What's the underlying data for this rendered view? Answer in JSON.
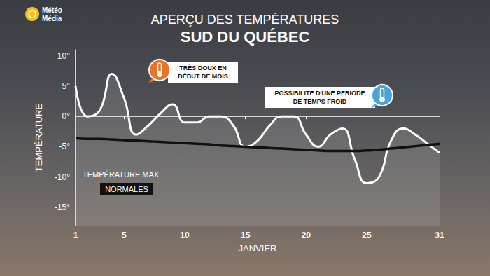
{
  "chart_data": {
    "type": "line",
    "title": "APERÇU DES TEMPÉRATURES",
    "subtitle": "SUD DU QUÉBEC",
    "logo": "Météo\nMédia",
    "x_label": "JANVIER",
    "y_label": "TEMPÉRATURE",
    "x": [
      1,
      2,
      3,
      4,
      5,
      6,
      7,
      8,
      9,
      10,
      11,
      12,
      13,
      14,
      15,
      16,
      17,
      18,
      19,
      20,
      21,
      22,
      23,
      24,
      25,
      26,
      27,
      28,
      29,
      30,
      31
    ],
    "series": [
      {
        "name": "TEMPÉRATURE MAX.",
        "color": "#ffffff",
        "values": [
          5,
          0,
          1,
          7,
          3,
          -3,
          -1.5,
          0.5,
          2,
          -1,
          -1,
          0,
          0,
          -1.5,
          -5,
          -4,
          -1.5,
          0,
          0,
          -3,
          -5,
          -3,
          -2,
          -7,
          -11,
          -10,
          -4,
          -2,
          -3,
          -4.5,
          -6
        ]
      },
      {
        "name": "NORMALES",
        "color": "#111111",
        "values": [
          -3.6,
          -3.7,
          -3.7,
          -3.8,
          -3.9,
          -4.0,
          -4.1,
          -4.2,
          -4.3,
          -4.4,
          -4.5,
          -4.6,
          -4.8,
          -4.9,
          -5.0,
          -5.1,
          -5.2,
          -5.3,
          -5.4,
          -5.5,
          -5.6,
          -5.7,
          -5.7,
          -5.7,
          -5.6,
          -5.5,
          -5.3,
          -5.1,
          -4.9,
          -4.7,
          -4.5
        ]
      }
    ],
    "xlim": [
      1,
      31
    ],
    "xticks": [
      1,
      5,
      10,
      15,
      20,
      25,
      31
    ],
    "ylim": [
      -18,
      11
    ],
    "yticks": [
      {
        "value": 10,
        "label": "10°"
      },
      {
        "value": 5,
        "label": "5°"
      },
      {
        "value": 0,
        "label": "0°"
      },
      {
        "value": -5,
        "label": "-5°"
      },
      {
        "value": -10,
        "label": "-10°"
      },
      {
        "value": -15,
        "label": "-15°"
      }
    ],
    "grid": false,
    "annotations": [
      {
        "text": "TRÈS DOUX EN\nDÉBUT DE MOIS",
        "color": "#e8742a"
      },
      {
        "text": "POSSIBILITÉ D'UNE PÉRIODE\nDE TEMPS FROID",
        "color": "#4ba3d9"
      }
    ]
  }
}
